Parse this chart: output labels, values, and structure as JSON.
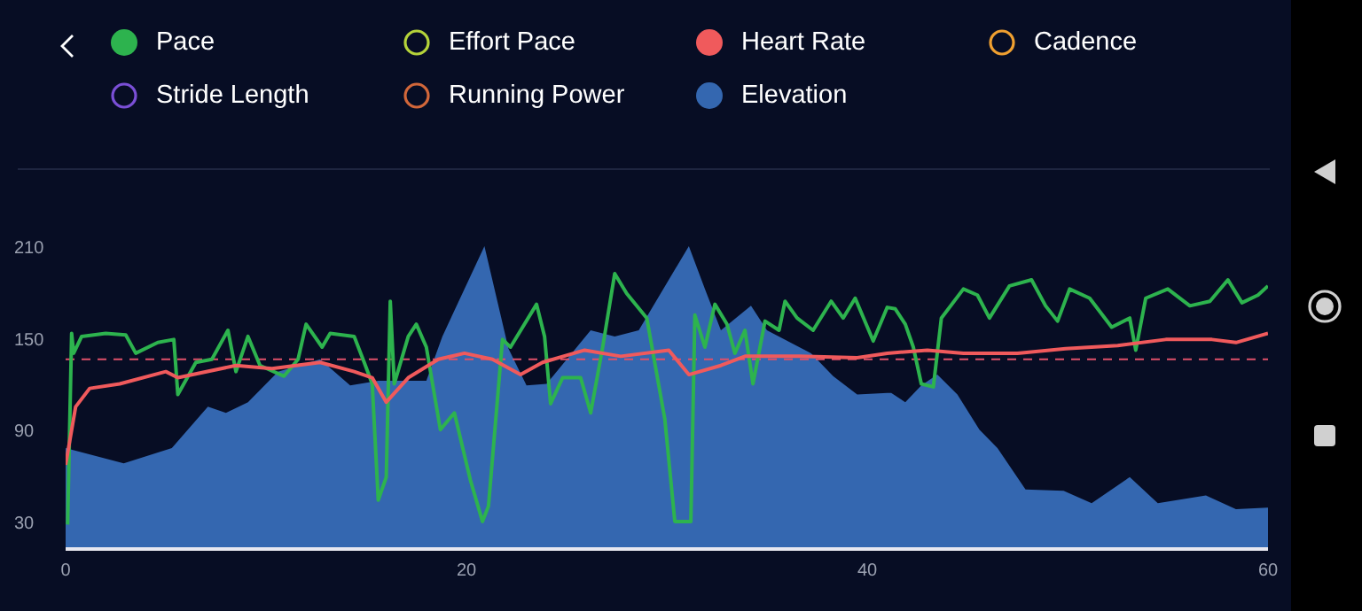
{
  "chart_data": {
    "type": "line",
    "xlim": [
      0,
      60
    ],
    "xticks": [
      0,
      20,
      40,
      60
    ],
    "ylim": [
      12,
      210
    ],
    "yticks": [
      30,
      90,
      150,
      210
    ],
    "grid": false,
    "legend": "top",
    "marker": "none",
    "line_style": "solid",
    "ref_lines": [
      {
        "axis": "y",
        "value": 136,
        "color": "#e0506a",
        "line_style": "dashed"
      }
    ],
    "series": [
      {
        "name": "Pace",
        "color": "#2db34e",
        "x": [
          0.1,
          0.3,
          0.4,
          0.8,
          2,
          3,
          3.5,
          4.6,
          5.4,
          5.6,
          6.5,
          7.3,
          8.1,
          8.5,
          9.1,
          9.7,
          10.9,
          11.6,
          12,
          12.8,
          13.2,
          14.4,
          14.9,
          15.3,
          15.6,
          16,
          16.2,
          16.4,
          17.1,
          17.5,
          18,
          18.7,
          19.4,
          20.2,
          20.8,
          21.1,
          21.8,
          22.2,
          23.5,
          23.9,
          24.2,
          24.8,
          25.7,
          26.2,
          26.8,
          27.4,
          28,
          29,
          29.9,
          30.4,
          31.2,
          31.4,
          31.9,
          32.4,
          33,
          33.4,
          33.9,
          34.3,
          34.9,
          35.6,
          35.9,
          36.5,
          37.3,
          38.2,
          38.8,
          39.4,
          40.3,
          41,
          41.4,
          41.9,
          42.3,
          42.7,
          43.3,
          43.7,
          44.8,
          45.5,
          46.1,
          47.1,
          48.2,
          48.9,
          49.5,
          50.1,
          51.1,
          52.2,
          53.1,
          53.4,
          53.9,
          55,
          56.1,
          57.1,
          58,
          58.7,
          59.5,
          60
        ],
        "values": [
          28,
          153,
          140,
          151,
          153,
          152,
          140,
          147,
          149,
          113,
          134,
          136,
          155,
          128,
          151,
          132,
          125,
          136,
          159,
          144,
          153,
          151,
          134,
          120,
          44,
          59,
          174,
          120,
          151,
          159,
          144,
          90,
          101,
          57,
          30,
          40,
          149,
          144,
          172,
          151,
          107,
          124,
          124,
          101,
          144,
          192,
          179,
          163,
          97,
          30,
          30,
          165,
          144,
          172,
          159,
          140,
          155,
          120,
          161,
          155,
          174,
          163,
          155,
          174,
          163,
          176,
          148,
          170,
          169,
          159,
          144,
          120,
          118,
          163,
          182,
          178,
          163,
          184,
          188,
          171,
          161,
          182,
          176,
          157,
          163,
          142,
          176,
          182,
          171,
          174,
          188,
          173,
          178,
          184
        ]
      },
      {
        "name": "Effort Pace",
        "color": "#b5d33a"
      },
      {
        "name": "Heart Rate",
        "color": "#f05a5c",
        "x": [
          0,
          0.5,
          1.2,
          2.7,
          5,
          5.6,
          8.5,
          10.3,
          12.7,
          14.4,
          15.3,
          16,
          17.1,
          18.6,
          19.9,
          21.3,
          22.7,
          23.8,
          25.9,
          27.7,
          30.1,
          31.1,
          32.7,
          33.9,
          36.6,
          39.5,
          41,
          43,
          44.8,
          47.5,
          49.9,
          52.5,
          54.9,
          57.2,
          58.4,
          60
        ],
        "values": [
          67,
          105,
          117,
          120,
          128,
          124,
          132,
          130,
          134,
          128,
          124,
          108,
          124,
          136,
          140,
          136,
          126,
          134,
          142,
          138,
          142,
          126,
          132,
          138,
          138,
          137,
          140,
          142,
          140,
          140,
          143,
          145,
          149,
          149,
          147,
          153
        ]
      },
      {
        "name": "Cadence",
        "color": "#f0a030"
      },
      {
        "name": "Stride Length",
        "color": "#7a4fd6"
      },
      {
        "name": "Running Power",
        "color": "#d2673a"
      },
      {
        "name": "Elevation",
        "color": "#3467b0",
        "type": "area",
        "x": [
          0,
          2.9,
          5.3,
          7.1,
          8,
          9.1,
          10.6,
          12.7,
          14.2,
          15.6,
          18,
          18.8,
          20.9,
          22.1,
          23,
          24,
          26.2,
          27.4,
          28.6,
          31.1,
          31.9,
          32.7,
          34.2,
          35,
          37.2,
          38.3,
          39.5,
          41,
          41.2,
          41.9,
          42.7,
          43.5,
          44.5,
          45.6,
          46.5,
          47.9,
          49.8,
          51.2,
          53.1,
          54.5,
          56.9,
          58.4,
          60
        ],
        "values": [
          78,
          68,
          78,
          105,
          101,
          108,
          128,
          136,
          119,
          122,
          122,
          151,
          210,
          143,
          119,
          120,
          155,
          151,
          155,
          210,
          182,
          155,
          171,
          155,
          140,
          125,
          113,
          114,
          114,
          108,
          119,
          126,
          113,
          90,
          78,
          51,
          50,
          42,
          59,
          42,
          47,
          38,
          39
        ]
      }
    ]
  }
}
